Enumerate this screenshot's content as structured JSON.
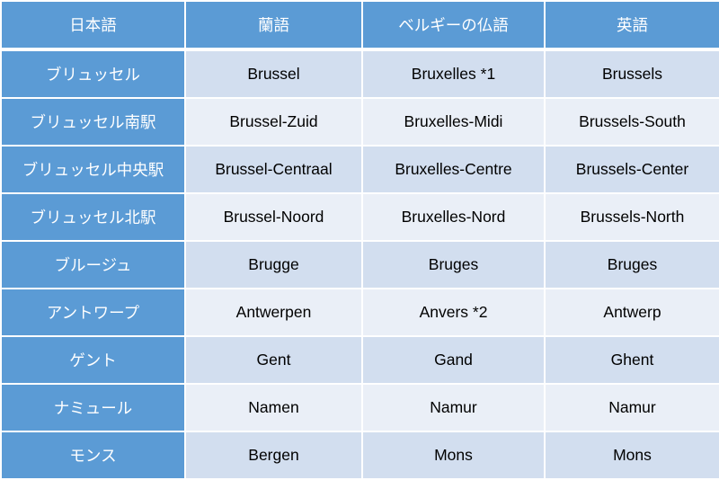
{
  "headers": [
    "日本語",
    "蘭語",
    "ベルギーの仏語",
    "英語"
  ],
  "rows": [
    [
      "ブリュッセル",
      "Brussel",
      "Bruxelles *1",
      "Brussels"
    ],
    [
      "ブリュッセル南駅",
      "Brussel-Zuid",
      "Bruxelles-Midi",
      "Brussels-South"
    ],
    [
      "ブリュッセル中央駅",
      "Brussel-Centraal",
      "Bruxelles-Centre",
      "Brussels-Center"
    ],
    [
      "ブリュッセル北駅",
      "Brussel-Noord",
      "Bruxelles-Nord",
      "Brussels-North"
    ],
    [
      "ブルージュ",
      "Brugge",
      "Bruges",
      "Bruges"
    ],
    [
      "アントワープ",
      "Antwerpen",
      "Anvers *2",
      "Antwerp"
    ],
    [
      "ゲント",
      "Gent",
      "Gand",
      "Ghent"
    ],
    [
      "ナミュール",
      "Namen",
      "Namur",
      "Namur"
    ],
    [
      "モンス",
      "Bergen",
      "Mons",
      "Mons"
    ]
  ],
  "colors": {
    "header": "#5B9BD5",
    "row_odd": "#D2DEEF",
    "row_even": "#EAEFF7"
  }
}
